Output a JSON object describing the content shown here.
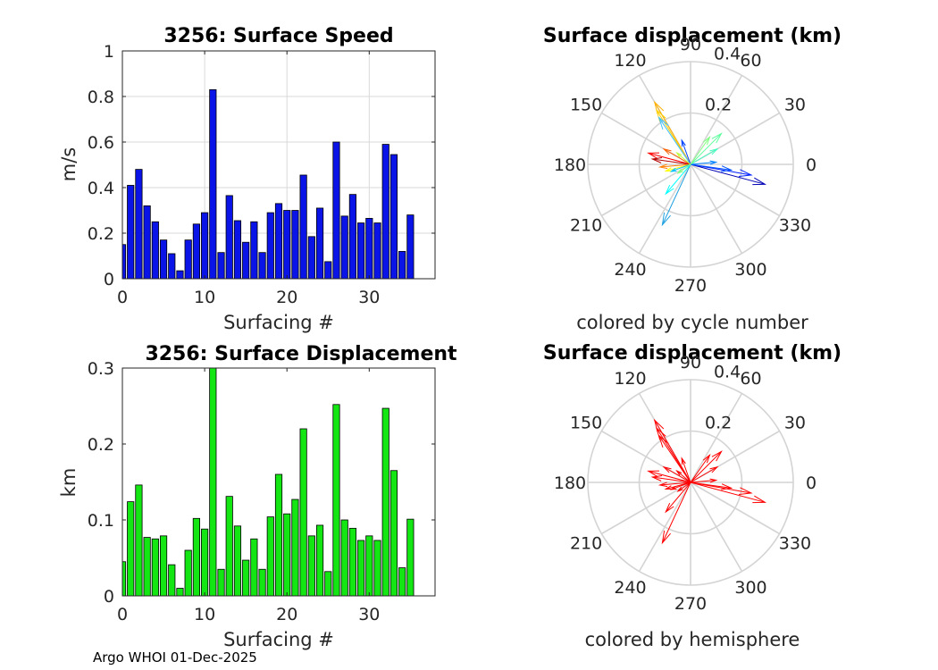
{
  "footer": "Argo WHOI 01-Dec-2025",
  "chart_data": [
    {
      "id": "speed",
      "type": "bar",
      "title": "3256: Surface Speed",
      "xlabel": "Surfacing #",
      "ylabel": "m/s",
      "xlim": [
        0,
        38
      ],
      "ylim": [
        0,
        1
      ],
      "xticks": [
        0,
        10,
        20,
        30
      ],
      "xtick_labels": [
        "0",
        "10",
        "20",
        "30"
      ],
      "yticks": [
        0,
        0.2,
        0.4,
        0.6,
        0.8,
        1
      ],
      "ytick_labels": [
        "0",
        "0.2",
        "0.4",
        "0.6",
        "0.8",
        "1"
      ],
      "grid": true,
      "color": "#0a14e6",
      "x": [
        0,
        1,
        2,
        3,
        4,
        5,
        6,
        7,
        8,
        9,
        10,
        11,
        12,
        13,
        14,
        15,
        16,
        17,
        18,
        19,
        20,
        21,
        22,
        23,
        24,
        25,
        26,
        27,
        28,
        29,
        30,
        31,
        32,
        33,
        34,
        35
      ],
      "values": [
        0.15,
        0.41,
        0.48,
        0.32,
        0.25,
        0.17,
        0.11,
        0.035,
        0.17,
        0.24,
        0.29,
        0.83,
        0.115,
        0.365,
        0.255,
        0.16,
        0.25,
        0.115,
        0.29,
        0.33,
        0.3,
        0.3,
        0.455,
        0.185,
        0.31,
        0.075,
        0.6,
        0.275,
        0.37,
        0.245,
        0.265,
        0.245,
        0.59,
        0.545,
        0.12,
        0.28
      ]
    },
    {
      "id": "displacement",
      "type": "bar",
      "title": "3256: Surface Displacement",
      "xlabel": "Surfacing #",
      "ylabel": "km",
      "xlim": [
        0,
        38
      ],
      "ylim": [
        0,
        0.3
      ],
      "xticks": [
        0,
        10,
        20,
        30
      ],
      "xtick_labels": [
        "0",
        "10",
        "20",
        "30"
      ],
      "yticks": [
        0,
        0.1,
        0.2,
        0.3
      ],
      "ytick_labels": [
        "0",
        "0.1",
        "0.2",
        "0.3"
      ],
      "grid": false,
      "color": "#14e614",
      "x": [
        0,
        1,
        2,
        3,
        4,
        5,
        6,
        7,
        8,
        9,
        10,
        11,
        12,
        13,
        14,
        15,
        16,
        17,
        18,
        19,
        20,
        21,
        22,
        23,
        24,
        25,
        26,
        27,
        28,
        29,
        30,
        31,
        32,
        33,
        34,
        35
      ],
      "values": [
        0.045,
        0.124,
        0.146,
        0.077,
        0.075,
        0.079,
        0.041,
        0.01,
        0.06,
        0.102,
        0.088,
        0.3,
        0.035,
        0.131,
        0.092,
        0.047,
        0.075,
        0.035,
        0.104,
        0.16,
        0.108,
        0.127,
        0.22,
        0.079,
        0.093,
        0.032,
        0.252,
        0.1,
        0.089,
        0.073,
        0.079,
        0.073,
        0.247,
        0.165,
        0.037,
        0.101
      ]
    },
    {
      "id": "polar-cycle",
      "type": "polar-arrows",
      "title": "Surface displacement (km)",
      "caption": "colored by cycle number",
      "rmax": 0.4,
      "rticks": [
        0.2,
        0.4
      ],
      "rtick_labels": [
        "0.2",
        "0.4"
      ],
      "angle_labels": [
        "0",
        "30",
        "60",
        "90",
        "120",
        "150",
        "180",
        "210",
        "240",
        "270",
        "300",
        "330"
      ],
      "arrows": [
        {
          "angle": 345,
          "r": 0.3,
          "color": "#0000b4"
        },
        {
          "angle": 350,
          "r": 0.24,
          "color": "#0020ff"
        },
        {
          "angle": 352,
          "r": 0.16,
          "color": "#0050ff"
        },
        {
          "angle": 5,
          "r": 0.1,
          "color": "#0080ff"
        },
        {
          "angle": 30,
          "r": 0.12,
          "color": "#40ffc0"
        },
        {
          "angle": 45,
          "r": 0.17,
          "color": "#60ff9f"
        },
        {
          "angle": 55,
          "r": 0.13,
          "color": "#80ff80"
        },
        {
          "angle": 120,
          "r": 0.28,
          "color": "#ffb000"
        },
        {
          "angle": 122,
          "r": 0.25,
          "color": "#ffd000"
        },
        {
          "angle": 124,
          "r": 0.22,
          "color": "#40c0ff"
        },
        {
          "angle": 110,
          "r": 0.1,
          "color": "#0040ff"
        },
        {
          "angle": 150,
          "r": 0.12,
          "color": "#ff6000"
        },
        {
          "angle": 165,
          "r": 0.17,
          "color": "#ff0000"
        },
        {
          "angle": 172,
          "r": 0.15,
          "color": "#b40000"
        },
        {
          "angle": 185,
          "r": 0.12,
          "color": "#ff8000"
        },
        {
          "angle": 195,
          "r": 0.1,
          "color": "#ffff00"
        },
        {
          "angle": 200,
          "r": 0.08,
          "color": "#00c0ff"
        },
        {
          "angle": 245,
          "r": 0.26,
          "color": "#20a0e0"
        },
        {
          "angle": 230,
          "r": 0.15,
          "color": "#00ffff"
        },
        {
          "angle": 215,
          "r": 0.06,
          "color": "#80ff80"
        },
        {
          "angle": 140,
          "r": 0.07,
          "color": "#c0ff40"
        }
      ]
    },
    {
      "id": "polar-hemisphere",
      "type": "polar-arrows",
      "title": "Surface displacement (km)",
      "caption": "colored by hemisphere",
      "rmax": 0.4,
      "rticks": [
        0.2,
        0.4
      ],
      "rtick_labels": [
        "0.2",
        "0.4"
      ],
      "angle_labels": [
        "0",
        "30",
        "60",
        "90",
        "120",
        "150",
        "180",
        "210",
        "240",
        "270",
        "300",
        "330"
      ],
      "arrows": [
        {
          "angle": 345,
          "r": 0.3,
          "color": "#ff0000"
        },
        {
          "angle": 350,
          "r": 0.24,
          "color": "#ff0000"
        },
        {
          "angle": 352,
          "r": 0.16,
          "color": "#ff0000"
        },
        {
          "angle": 5,
          "r": 0.1,
          "color": "#ff0000"
        },
        {
          "angle": 30,
          "r": 0.12,
          "color": "#ff0000"
        },
        {
          "angle": 45,
          "r": 0.17,
          "color": "#ff0000"
        },
        {
          "angle": 55,
          "r": 0.13,
          "color": "#ff0000"
        },
        {
          "angle": 120,
          "r": 0.28,
          "color": "#ff0000"
        },
        {
          "angle": 122,
          "r": 0.25,
          "color": "#ff0000"
        },
        {
          "angle": 124,
          "r": 0.22,
          "color": "#ff0000"
        },
        {
          "angle": 110,
          "r": 0.1,
          "color": "#ff0000"
        },
        {
          "angle": 150,
          "r": 0.12,
          "color": "#ff0000"
        },
        {
          "angle": 165,
          "r": 0.17,
          "color": "#ff0000"
        },
        {
          "angle": 172,
          "r": 0.15,
          "color": "#ff0000"
        },
        {
          "angle": 185,
          "r": 0.12,
          "color": "#ff0000"
        },
        {
          "angle": 195,
          "r": 0.1,
          "color": "#ff0000"
        },
        {
          "angle": 200,
          "r": 0.08,
          "color": "#ff0000"
        },
        {
          "angle": 245,
          "r": 0.26,
          "color": "#ff0000"
        },
        {
          "angle": 230,
          "r": 0.15,
          "color": "#ff0000"
        },
        {
          "angle": 215,
          "r": 0.06,
          "color": "#ff0000"
        },
        {
          "angle": 140,
          "r": 0.07,
          "color": "#ff0000"
        }
      ]
    }
  ]
}
